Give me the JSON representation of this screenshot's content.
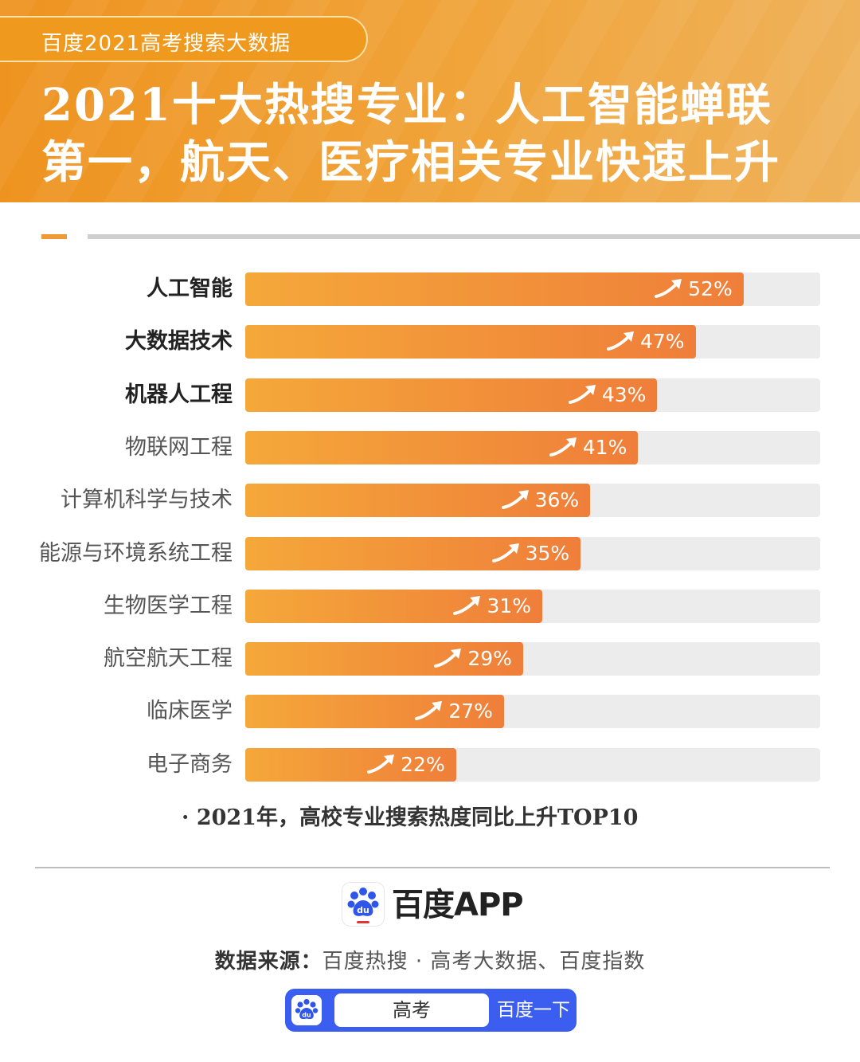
{
  "header": {
    "tag": "百度2021高考搜索大数据",
    "title_line1": "2021十大热搜专业：人工智能蝉联",
    "title_line2": "第一，航天、医疗相关专业快速上升"
  },
  "chart_data": {
    "type": "bar",
    "orientation": "horizontal",
    "categories": [
      "人工智能",
      "大数据技术",
      "机器人工程",
      "物联网工程",
      "计算机科学与技术",
      "能源与环境系统工程",
      "生物医学工程",
      "航空航天工程",
      "临床医学",
      "电子商务"
    ],
    "values": [
      52,
      47,
      43,
      41,
      36,
      35,
      31,
      29,
      27,
      22
    ],
    "value_labels": [
      "52%",
      "47%",
      "43%",
      "41%",
      "36%",
      "35%",
      "31%",
      "29%",
      "27%",
      "22%"
    ],
    "bold_categories": 3,
    "xlim": [
      0,
      60
    ],
    "note": "2021年，高校专业搜索热度同比上升TOP10",
    "bar_color_start": "#f5a83a",
    "bar_color_end": "#ef7e3a",
    "track_color": "#ececec",
    "legend": "none",
    "grid": false
  },
  "footer": {
    "brand": "百度APP",
    "source_label": "数据来源：",
    "source_text": "百度热搜 · 高考大数据、百度指数",
    "search_query": "高考",
    "search_button": "百度一下",
    "logo_icon": "baidu-paw-icon",
    "accent_color": "#3b5ef0"
  }
}
